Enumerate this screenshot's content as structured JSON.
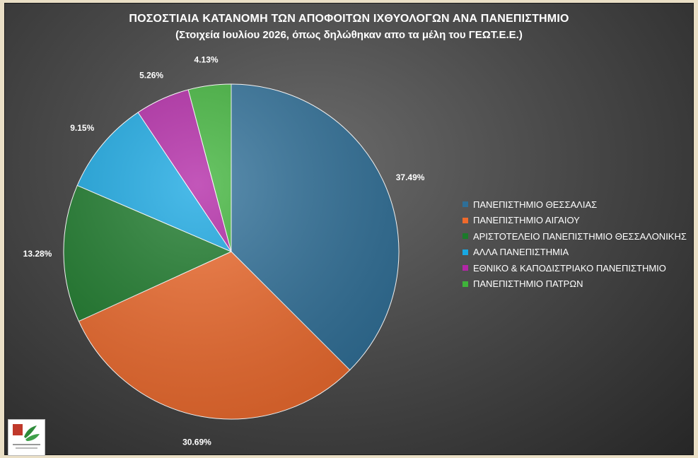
{
  "chart_data": {
    "type": "pie",
    "title": "ΠΟΣΟΣΤΙΑΙΑ ΚΑΤΑΝΟΜΗ ΤΩΝ ΑΠΟΦΟΙΤΩΝ ΙΧΘΥΟΛΟΓΩΝ ΑΝΑ ΠΑΝΕΠΙΣΤΗΜΙΟ",
    "subtitle": "(Στοιχεία Ιουλίου 2026, όπως δηλώθηκαν  απο τα μέλη του ΓΕΩΤ.Ε.Ε.)",
    "legend_position": "right",
    "slices": [
      {
        "label": "ΠΑΝΕΠΙΣΤΗΜΙΟ ΘΕΣΣΑΛΙΑΣ",
        "value": 37.49,
        "display": "37.49%",
        "color": "#2e6f98"
      },
      {
        "label": "ΠΑΝΕΠΙΣΤΗΜΙΟ ΑΙΓΑΙΟΥ",
        "value": 30.69,
        "display": "30.69%",
        "color": "#ef6a2c"
      },
      {
        "label": "ΑΡΙΣΤΟΤΕΛΕΙΟ ΠΑΝΕΠΙΣΤΗΜΙΟ ΘΕΣΣΑΛΟΝΙΚΗΣ",
        "value": 13.28,
        "display": "13.28%",
        "color": "#1b7a2a"
      },
      {
        "label": "ΑΛΛΑ ΠΑΝΕΠΙΣΤΗΜΙΑ",
        "value": 9.15,
        "display": "9.15%",
        "color": "#18a8e3"
      },
      {
        "label": "ΕΘΝΙΚΟ & ΚΑΠΟΔΙΣΤΡΙΑΚΟ ΠΑΝΕΠΙΣΤΗΜΙΟ",
        "value": 5.26,
        "display": "5.26%",
        "color": "#b227a6"
      },
      {
        "label": "ΠΑΝΕΠΙΣΤΗΜΙΟ ΠΑΤΡΩΝ",
        "value": 4.13,
        "display": "4.13%",
        "color": "#3fb43a"
      }
    ]
  },
  "logo": {
    "icon": "geotee-logo-icon"
  }
}
